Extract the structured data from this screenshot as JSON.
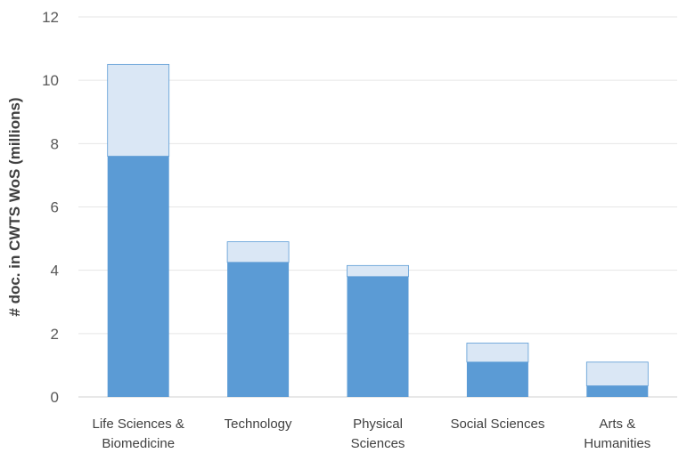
{
  "chart_data": {
    "type": "bar",
    "stacked": true,
    "title": "",
    "xlabel": "",
    "ylabel": "# doc. in CWTS WoS (millions)",
    "ylim": [
      0,
      12
    ],
    "yticks": [
      0,
      2,
      4,
      6,
      8,
      10,
      12
    ],
    "grid": true,
    "categories": [
      [
        "Life Sciences &",
        "Biomedicine"
      ],
      [
        "Technology"
      ],
      [
        "Physical",
        "Sciences"
      ],
      [
        "Social Sciences"
      ],
      [
        "Arts &",
        "Humanities"
      ]
    ],
    "series": [
      {
        "values": [
          7.6,
          4.25,
          3.8,
          1.1,
          0.35
        ],
        "color": "#5b9bd5"
      },
      {
        "values": [
          2.9,
          0.65,
          0.35,
          0.6,
          0.75
        ],
        "color": "#dae7f5"
      }
    ]
  }
}
